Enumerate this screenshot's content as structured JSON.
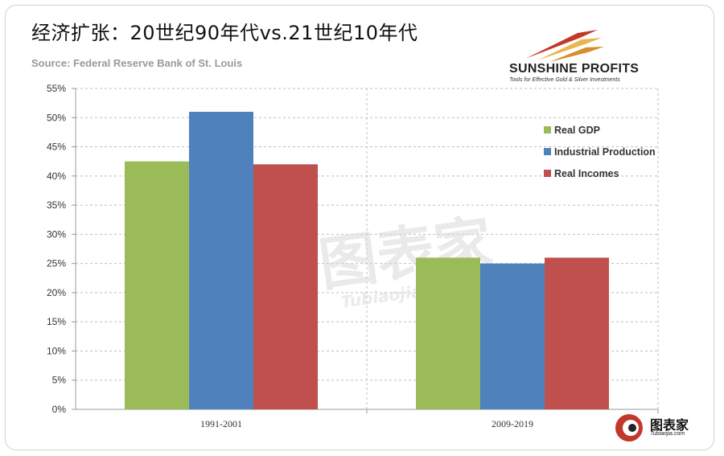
{
  "header": {
    "title": "经济扩张：20世纪90年代vs.21世纪10年代",
    "source": "Source: Federal Reserve Bank of St. Louis"
  },
  "logo": {
    "brand": "SUNSHINE PROFITS",
    "tagline": "Tools for Effective Gold & Silver Investments",
    "icon": "rising-arrows-icon"
  },
  "watermark": {
    "text": "图表家",
    "url": "Tubiaojia.com"
  },
  "corner_logo": {
    "text": "图表家",
    "url": "Tubiaojia.com",
    "icon": "spiral-logo-icon"
  },
  "colors": {
    "gdp": "#9bbb59",
    "industrial": "#4f81bd",
    "incomes": "#c0504d"
  },
  "chart_data": {
    "type": "bar",
    "categories": [
      "1991-2001",
      "2009-2019"
    ],
    "series": [
      {
        "name": "Real GDP",
        "values": [
          42.5,
          26
        ]
      },
      {
        "name": "Industrial Production",
        "values": [
          51,
          25
        ]
      },
      {
        "name": "Real Incomes",
        "values": [
          42,
          26
        ]
      }
    ],
    "yticks": [
      "0%",
      "5%",
      "10%",
      "15%",
      "20%",
      "25%",
      "30%",
      "35%",
      "40%",
      "45%",
      "50%",
      "55%"
    ],
    "ylim": [
      0,
      55
    ],
    "grid": true,
    "legend_position": "right"
  }
}
